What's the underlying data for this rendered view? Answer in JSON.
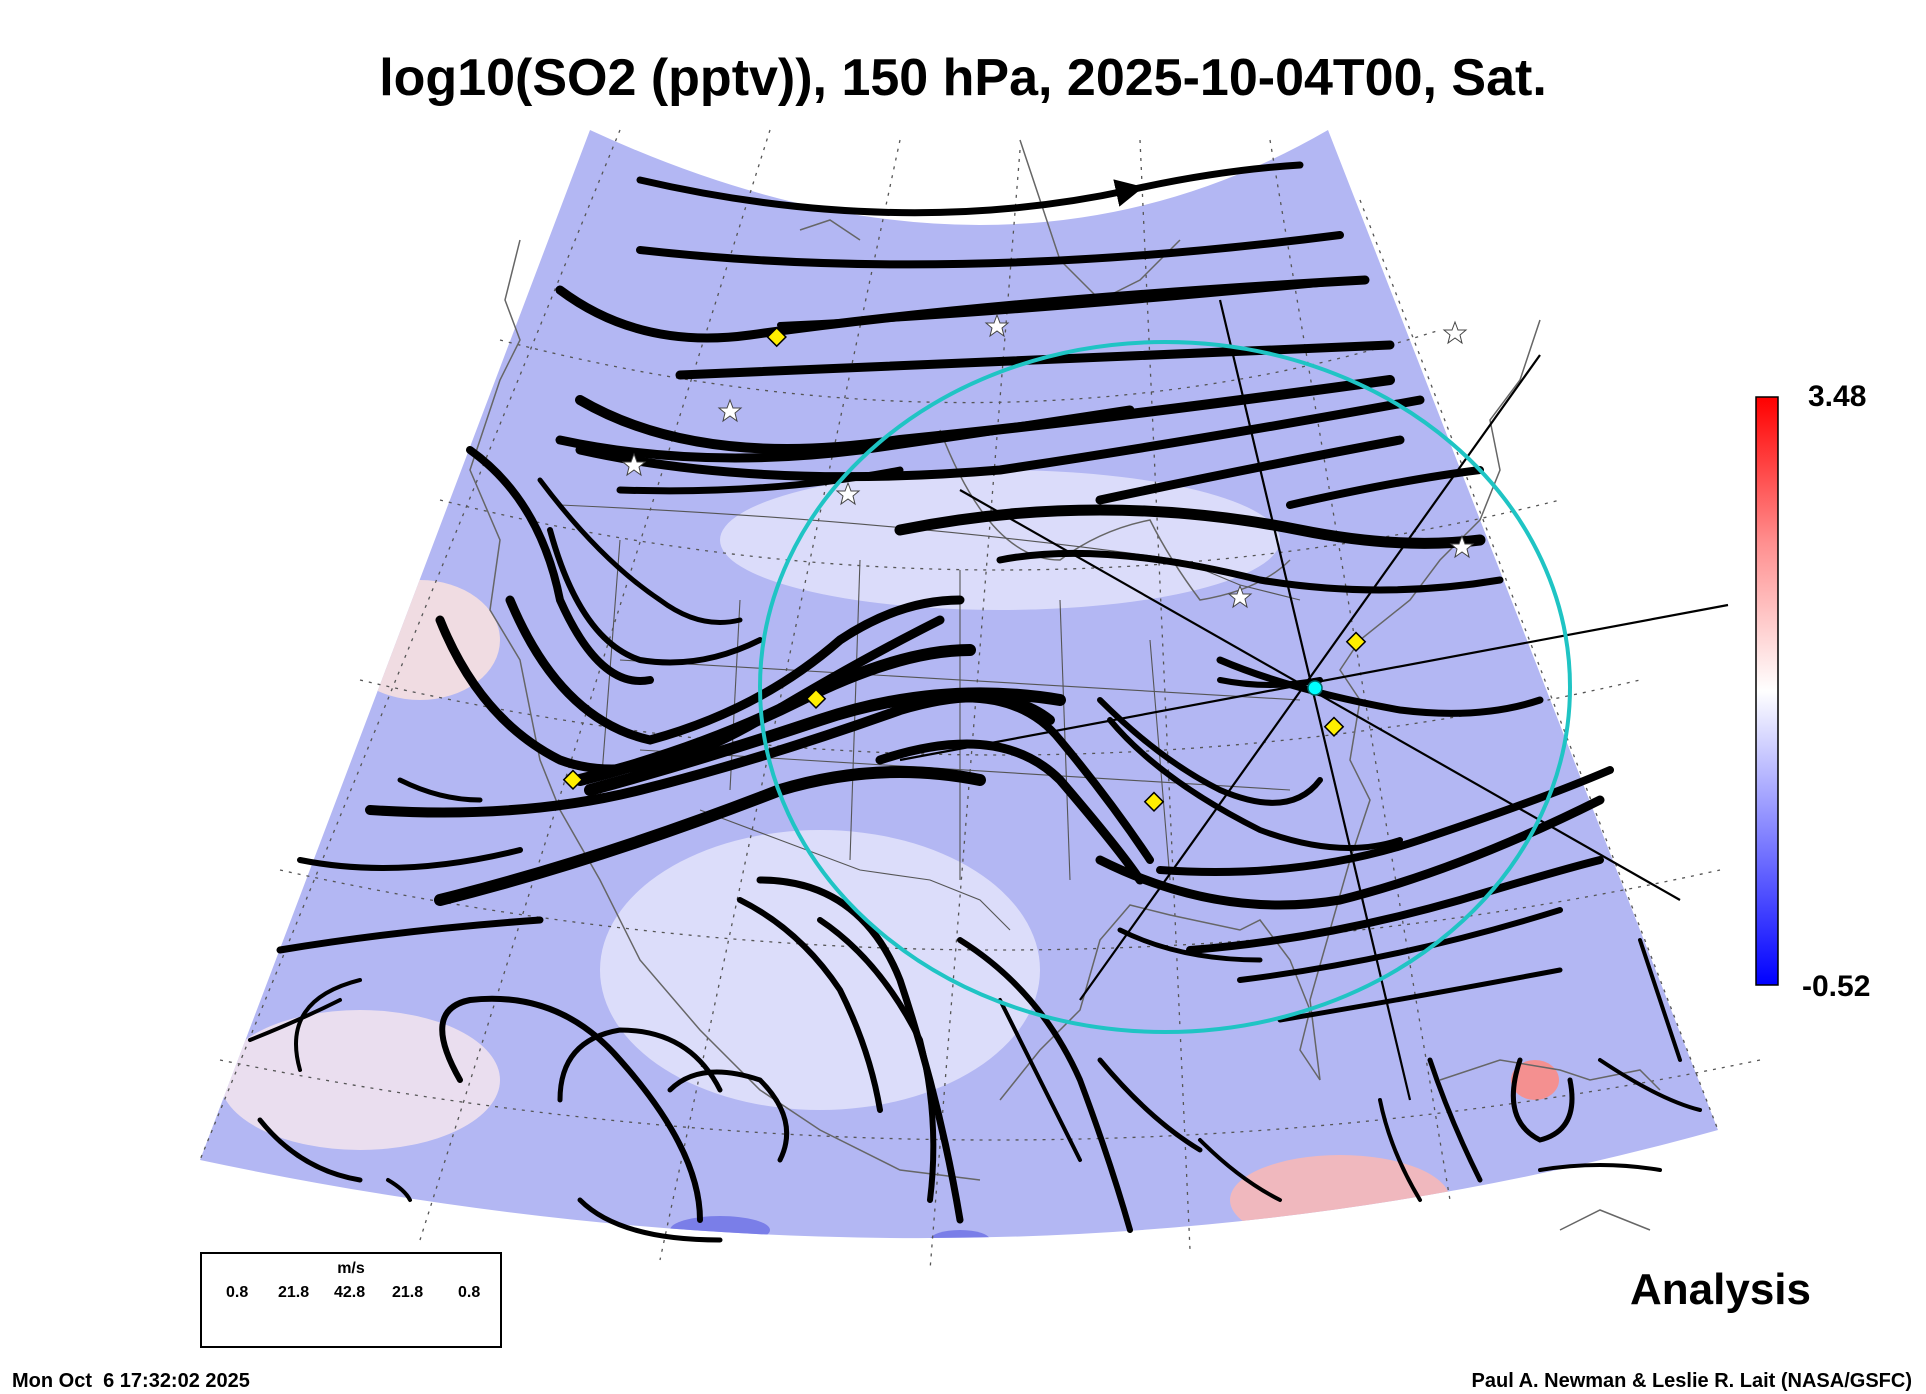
{
  "title": "log10(SO2 (pptv)), 150 hPa, 2025-10-04T00, Sat.",
  "colorbar": {
    "max_label": "3.48",
    "min_label": "-0.52",
    "colors": [
      "#0000ff",
      "#7878ff",
      "#d8d8ff",
      "#ffffff",
      "#ffd8d8",
      "#ff7878",
      "#ff0000"
    ]
  },
  "legend": {
    "unit": "m/s",
    "values": [
      "0.8",
      "21.8",
      "42.8",
      "21.8",
      "0.8"
    ]
  },
  "analysis_label": "Analysis",
  "timestamp": "Mon Oct  6 17:32:02 2025",
  "credit": "Paul A. Newman & Leslie R. Lait (NASA/GSFC)",
  "map": {
    "field_color": "#b4b8f4",
    "circle_color": "#1fc4c4",
    "marker_color": "#ffee00",
    "center_marker_color": "#00ffff"
  }
}
